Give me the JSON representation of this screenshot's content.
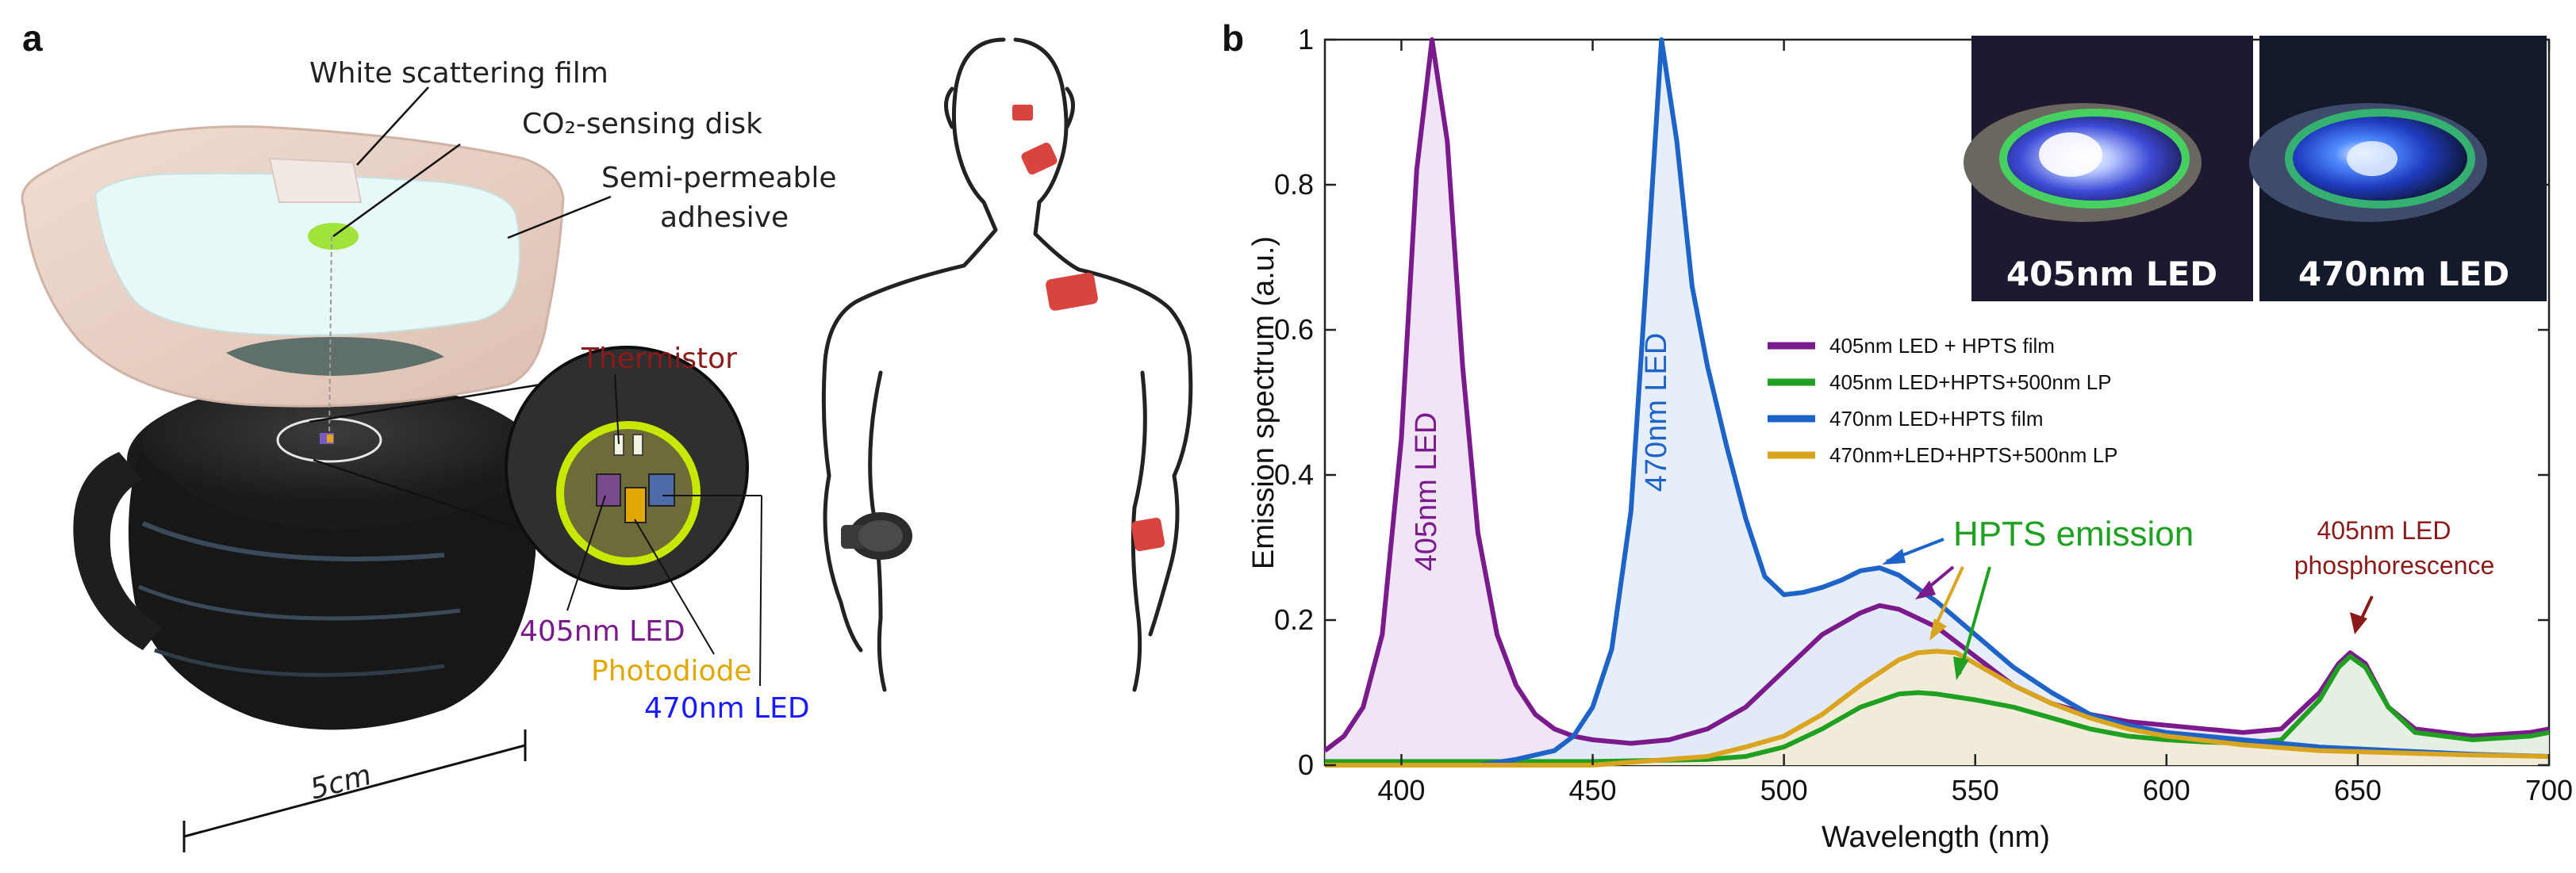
{
  "panel_a": {
    "letter": "a",
    "labels": {
      "white_scattering_film": "White scattering film",
      "co2_sensing_disk": "CO₂-sensing disk",
      "semi_permeable": "Semi-permeable",
      "adhesive": "adhesive",
      "thermistor": "Thermistor",
      "led_405": "405nm LED",
      "photodiode": "Photodiode",
      "led_470": "470nm LED",
      "scale": "5cm"
    },
    "colors": {
      "thermistor": "#8b1a1a",
      "led_405": "#7b1a8c",
      "photodiode": "#e0a800",
      "led_470": "#1a1aff",
      "patch": "#d9443f"
    }
  },
  "panel_b": {
    "letter": "b",
    "photo_labels": [
      "405nm LED",
      "470nm LED"
    ],
    "annotations": {
      "peak_405": "405nm LED",
      "peak_470": "470nm LED",
      "hpts": "HPTS emission",
      "phos_line1": "405nm LED",
      "phos_line2": "phosphorescence"
    }
  },
  "chart_data": {
    "type": "line",
    "title": "",
    "xlabel": "Wavelength (nm)",
    "ylabel": "Emission spectrum (a.u.)",
    "xlim": [
      380,
      700
    ],
    "ylim": [
      0,
      1
    ],
    "xticks": [
      400,
      450,
      500,
      550,
      600,
      650,
      700
    ],
    "yticks": [
      0,
      0.2,
      0.4,
      0.6,
      0.8,
      1
    ],
    "ytick_labels": [
      "0",
      "0.2",
      "0.4",
      "0.6",
      "0.8",
      "1"
    ],
    "legend_position": "center-right",
    "series": [
      {
        "name": "405nm LED + HPTS film",
        "color": "#7b1a8c",
        "fill": "#eadcf2",
        "points": [
          [
            380,
            0.02
          ],
          [
            385,
            0.04
          ],
          [
            390,
            0.08
          ],
          [
            395,
            0.18
          ],
          [
            400,
            0.45
          ],
          [
            404,
            0.82
          ],
          [
            408,
            1.0
          ],
          [
            412,
            0.86
          ],
          [
            416,
            0.55
          ],
          [
            420,
            0.32
          ],
          [
            425,
            0.18
          ],
          [
            430,
            0.11
          ],
          [
            435,
            0.07
          ],
          [
            440,
            0.05
          ],
          [
            445,
            0.04
          ],
          [
            450,
            0.035
          ],
          [
            460,
            0.03
          ],
          [
            470,
            0.035
          ],
          [
            480,
            0.05
          ],
          [
            490,
            0.08
          ],
          [
            500,
            0.13
          ],
          [
            510,
            0.18
          ],
          [
            520,
            0.21
          ],
          [
            525,
            0.22
          ],
          [
            530,
            0.215
          ],
          [
            540,
            0.19
          ],
          [
            550,
            0.15
          ],
          [
            560,
            0.11
          ],
          [
            570,
            0.085
          ],
          [
            580,
            0.07
          ],
          [
            590,
            0.06
          ],
          [
            600,
            0.055
          ],
          [
            610,
            0.05
          ],
          [
            620,
            0.045
          ],
          [
            630,
            0.05
          ],
          [
            640,
            0.1
          ],
          [
            645,
            0.14
          ],
          [
            648,
            0.155
          ],
          [
            652,
            0.14
          ],
          [
            658,
            0.08
          ],
          [
            665,
            0.05
          ],
          [
            680,
            0.04
          ],
          [
            695,
            0.045
          ],
          [
            700,
            0.05
          ]
        ]
      },
      {
        "name": "405nm LED+HPTS+500nm LP",
        "color": "#1fa020",
        "fill": "#e3f2dc",
        "points": [
          [
            380,
            0.005
          ],
          [
            450,
            0.005
          ],
          [
            480,
            0.008
          ],
          [
            490,
            0.012
          ],
          [
            500,
            0.025
          ],
          [
            510,
            0.05
          ],
          [
            520,
            0.08
          ],
          [
            530,
            0.098
          ],
          [
            535,
            0.1
          ],
          [
            540,
            0.098
          ],
          [
            550,
            0.09
          ],
          [
            560,
            0.08
          ],
          [
            570,
            0.065
          ],
          [
            580,
            0.05
          ],
          [
            590,
            0.04
          ],
          [
            600,
            0.035
          ],
          [
            610,
            0.032
          ],
          [
            620,
            0.03
          ],
          [
            630,
            0.035
          ],
          [
            640,
            0.09
          ],
          [
            645,
            0.135
          ],
          [
            648,
            0.15
          ],
          [
            652,
            0.135
          ],
          [
            658,
            0.08
          ],
          [
            665,
            0.045
          ],
          [
            680,
            0.035
          ],
          [
            695,
            0.04
          ],
          [
            700,
            0.045
          ]
        ]
      },
      {
        "name": "470nm LED+HPTS film",
        "color": "#1e63c8",
        "fill": "#dde9f7",
        "points": [
          [
            380,
            0
          ],
          [
            420,
            0
          ],
          [
            430,
            0.008
          ],
          [
            440,
            0.02
          ],
          [
            445,
            0.04
          ],
          [
            450,
            0.08
          ],
          [
            455,
            0.16
          ],
          [
            460,
            0.35
          ],
          [
            465,
            0.75
          ],
          [
            468,
            1.0
          ],
          [
            472,
            0.86
          ],
          [
            476,
            0.66
          ],
          [
            480,
            0.55
          ],
          [
            485,
            0.44
          ],
          [
            490,
            0.34
          ],
          [
            495,
            0.26
          ],
          [
            500,
            0.235
          ],
          [
            505,
            0.238
          ],
          [
            510,
            0.245
          ],
          [
            515,
            0.255
          ],
          [
            520,
            0.268
          ],
          [
            525,
            0.272
          ],
          [
            530,
            0.262
          ],
          [
            540,
            0.225
          ],
          [
            550,
            0.18
          ],
          [
            560,
            0.135
          ],
          [
            570,
            0.1
          ],
          [
            580,
            0.07
          ],
          [
            590,
            0.055
          ],
          [
            600,
            0.045
          ],
          [
            620,
            0.035
          ],
          [
            640,
            0.025
          ],
          [
            660,
            0.02
          ],
          [
            680,
            0.015
          ],
          [
            700,
            0.012
          ]
        ]
      },
      {
        "name": "470nm+LED+HPTS+500nm LP",
        "color": "#d9a520",
        "fill": "#f5ecd0",
        "points": [
          [
            380,
            0
          ],
          [
            450,
            0
          ],
          [
            480,
            0.012
          ],
          [
            490,
            0.025
          ],
          [
            500,
            0.04
          ],
          [
            510,
            0.07
          ],
          [
            520,
            0.11
          ],
          [
            530,
            0.145
          ],
          [
            535,
            0.155
          ],
          [
            540,
            0.157
          ],
          [
            545,
            0.155
          ],
          [
            550,
            0.14
          ],
          [
            560,
            0.11
          ],
          [
            570,
            0.085
          ],
          [
            580,
            0.065
          ],
          [
            590,
            0.05
          ],
          [
            600,
            0.04
          ],
          [
            620,
            0.028
          ],
          [
            640,
            0.02
          ],
          [
            660,
            0.017
          ],
          [
            680,
            0.014
          ],
          [
            700,
            0.012
          ]
        ]
      }
    ]
  }
}
